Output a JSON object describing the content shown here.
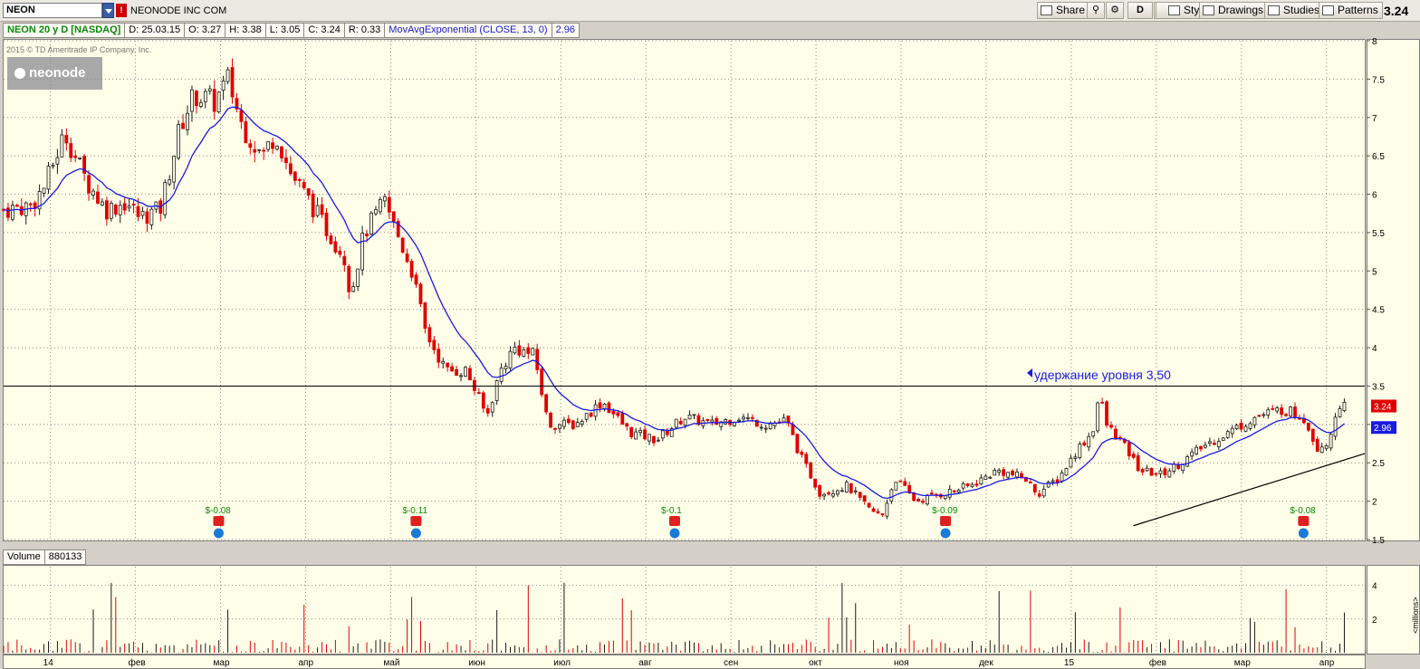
{
  "toolbar": {
    "symbol": "NEON",
    "company": "NEONODE INC COM",
    "last_price": "3.24",
    "share_label": "Share",
    "period_label": "D",
    "style_label": "Style",
    "drawings_label": "Drawings",
    "studies_label": "Studies",
    "patterns_label": "Patterns"
  },
  "info": {
    "title": "NEON 20 y D [NASDAQ]",
    "date": "D: 25.03.15",
    "open": "O: 3.27",
    "high": "H: 3.38",
    "low": "L: 3.05",
    "close": "C: 3.24",
    "range": "R: 0.33",
    "study": "MovAvgExponential (CLOSE, 13, 0)",
    "study_value": "2.96"
  },
  "watermark": "2015 © TD Ameritrade IP Company, Inc.",
  "logo_text": "neonode",
  "annotation": "удержание уровня 3,50",
  "volume": {
    "label": "Volume",
    "value": "880133",
    "unit": "<millions>"
  },
  "colors": {
    "up": "#1a1a1a",
    "down": "#e00000",
    "ema": "#1a1ae6",
    "bg": "#fffee8"
  },
  "chart_data": {
    "type": "candlestick",
    "ylim": [
      1.5,
      8
    ],
    "y_ticks": [
      "8",
      "7.5",
      "7",
      "6.5",
      "6",
      "5.5",
      "5",
      "4.5",
      "4",
      "3.5",
      "3",
      "2.5",
      "2",
      "1.5"
    ],
    "x_ticks": [
      "14",
      "фев",
      "мар",
      "апр",
      "май",
      "июн",
      "июл",
      "авг",
      "сен",
      "окт",
      "ноя",
      "дек",
      "15",
      "фев",
      "мар",
      "апр"
    ],
    "price_labels": {
      "close": "3.24",
      "ema": "2.96"
    },
    "resistance_level": 3.5,
    "support_line": [
      [
        0.83,
        1.68
      ],
      [
        1.0,
        2.62
      ]
    ],
    "dividends": [
      {
        "label": "$-0.08",
        "pos": 0.158
      },
      {
        "label": "$-0.11",
        "pos": 0.303
      },
      {
        "label": "$-0.1",
        "pos": 0.493
      },
      {
        "label": "$-0.09",
        "pos": 0.692
      },
      {
        "label": "$-0.08",
        "pos": 0.955
      }
    ],
    "close_path": [
      [
        0,
        5.8
      ],
      [
        0.02,
        5.85
      ],
      [
        0.03,
        6.1
      ],
      [
        0.045,
        6.8
      ],
      [
        0.06,
        6.2
      ],
      [
        0.075,
        5.8
      ],
      [
        0.09,
        5.9
      ],
      [
        0.1,
        5.7
      ],
      [
        0.115,
        5.8
      ],
      [
        0.13,
        6.9
      ],
      [
        0.14,
        7.3
      ],
      [
        0.155,
        7.2
      ],
      [
        0.165,
        7.5
      ],
      [
        0.175,
        6.9
      ],
      [
        0.19,
        6.5
      ],
      [
        0.2,
        6.8
      ],
      [
        0.21,
        6.3
      ],
      [
        0.225,
        5.9
      ],
      [
        0.235,
        5.6
      ],
      [
        0.25,
        5.2
      ],
      [
        0.255,
        4.7
      ],
      [
        0.265,
        5.5
      ],
      [
        0.28,
        5.9
      ],
      [
        0.3,
        5.0
      ],
      [
        0.31,
        4.2
      ],
      [
        0.325,
        3.7
      ],
      [
        0.34,
        3.7
      ],
      [
        0.355,
        3.1
      ],
      [
        0.365,
        3.7
      ],
      [
        0.375,
        4.0
      ],
      [
        0.39,
        3.9
      ],
      [
        0.4,
        3.0
      ],
      [
        0.42,
        3.0
      ],
      [
        0.44,
        3.3
      ],
      [
        0.46,
        2.9
      ],
      [
        0.48,
        2.8
      ],
      [
        0.5,
        3.1
      ],
      [
        0.52,
        3.0
      ],
      [
        0.54,
        3.1
      ],
      [
        0.56,
        3.0
      ],
      [
        0.575,
        3.05
      ],
      [
        0.585,
        2.6
      ],
      [
        0.6,
        2.1
      ],
      [
        0.62,
        2.2
      ],
      [
        0.635,
        1.9
      ],
      [
        0.645,
        1.8
      ],
      [
        0.655,
        2.3
      ],
      [
        0.67,
        2.0
      ],
      [
        0.69,
        2.1
      ],
      [
        0.71,
        2.2
      ],
      [
        0.73,
        2.4
      ],
      [
        0.75,
        2.3
      ],
      [
        0.76,
        2.1
      ],
      [
        0.775,
        2.3
      ],
      [
        0.79,
        2.7
      ],
      [
        0.8,
        2.9
      ],
      [
        0.805,
        3.4
      ],
      [
        0.81,
        3.0
      ],
      [
        0.82,
        2.8
      ],
      [
        0.835,
        2.4
      ],
      [
        0.85,
        2.35
      ],
      [
        0.865,
        2.5
      ],
      [
        0.88,
        2.7
      ],
      [
        0.9,
        2.9
      ],
      [
        0.92,
        3.1
      ],
      [
        0.94,
        3.2
      ],
      [
        0.955,
        3.1
      ],
      [
        0.965,
        2.7
      ],
      [
        0.975,
        2.8
      ],
      [
        0.98,
        3.3
      ],
      [
        0.985,
        3.24
      ]
    ]
  }
}
